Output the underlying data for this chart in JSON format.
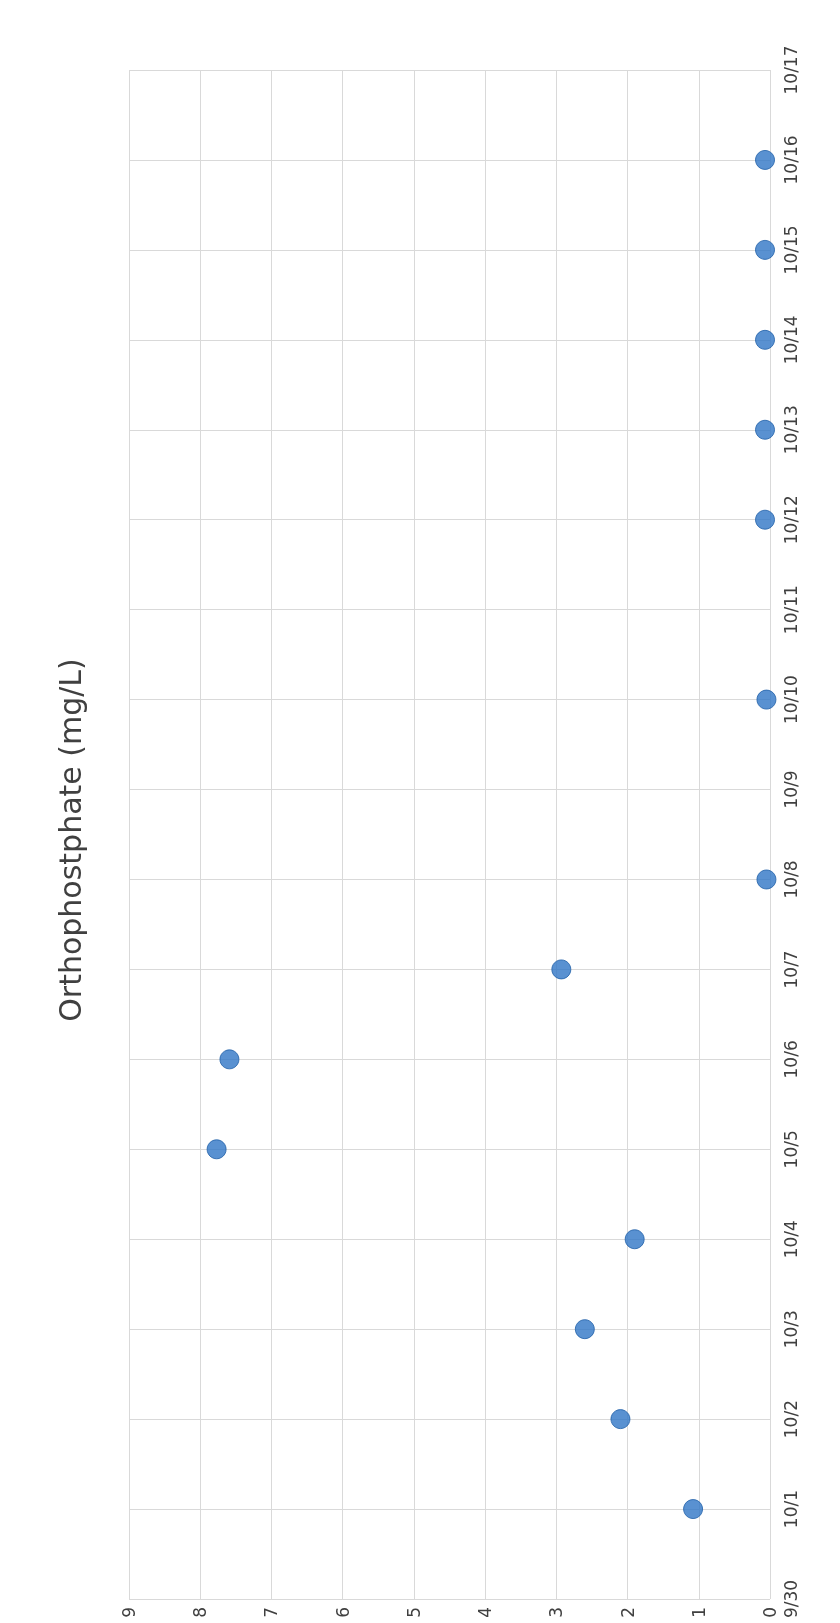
{
  "chart_data": {
    "type": "scatter",
    "title": "Orthophostphate (mg/L)",
    "orientation": "horizontal",
    "categories": [
      "10/17",
      "10/16",
      "10/15",
      "10/14",
      "10/13",
      "10/12",
      "10/11",
      "10/10",
      "10/9",
      "10/8",
      "10/7",
      "10/6",
      "10/5",
      "10/4",
      "10/3",
      "10/2",
      "10/1",
      "9/30"
    ],
    "values": [
      null,
      0.07,
      0.07,
      0.07,
      0.07,
      0.07,
      null,
      0.05,
      null,
      0.05,
      2.93,
      7.59,
      7.77,
      1.9,
      2.6,
      2.1,
      1.08,
      null
    ],
    "color": "#2f75c6",
    "xlim": [
      9,
      0
    ],
    "xticks": [
      0,
      1,
      2,
      3,
      4,
      5,
      6,
      7,
      8,
      9
    ],
    "grid": true,
    "marker": "circle"
  }
}
